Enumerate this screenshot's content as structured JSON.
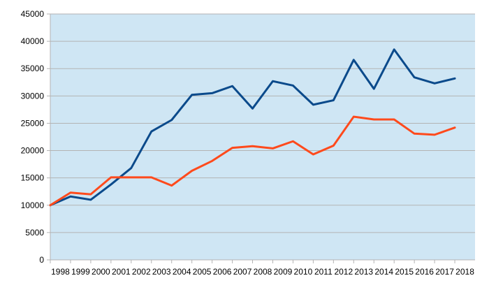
{
  "chart_data": {
    "type": "line",
    "title": "",
    "xlabel": "",
    "ylabel": "",
    "ylim": [
      0,
      45000
    ],
    "yticks": [
      0,
      5000,
      10000,
      15000,
      20000,
      25000,
      30000,
      35000,
      40000,
      45000
    ],
    "grid": true,
    "legend": "none",
    "plot_background": "#cfe6f4",
    "categories": [
      "1998",
      "1999",
      "2000",
      "2001",
      "2002",
      "2003",
      "2004",
      "2005",
      "2006",
      "2007",
      "2008",
      "2009",
      "2010",
      "2011",
      "2012",
      "2013",
      "2014",
      "2015",
      "2016",
      "2017",
      "2018"
    ],
    "series": [
      {
        "color": "#0b4a8b",
        "values": [
          10000,
          11600,
          11000,
          13800,
          16800,
          23500,
          25600,
          30200,
          30500,
          31800,
          27700,
          32700,
          31900,
          28400,
          29200,
          36600,
          31300,
          38500,
          33400,
          32300,
          33200
        ]
      },
      {
        "color": "#ff4a1c",
        "values": [
          10000,
          12300,
          12000,
          15100,
          15100,
          15100,
          13600,
          16300,
          18100,
          20500,
          20800,
          20400,
          21700,
          19300,
          20900,
          26200,
          25700,
          25700,
          23100,
          22900,
          24200
        ]
      }
    ]
  }
}
